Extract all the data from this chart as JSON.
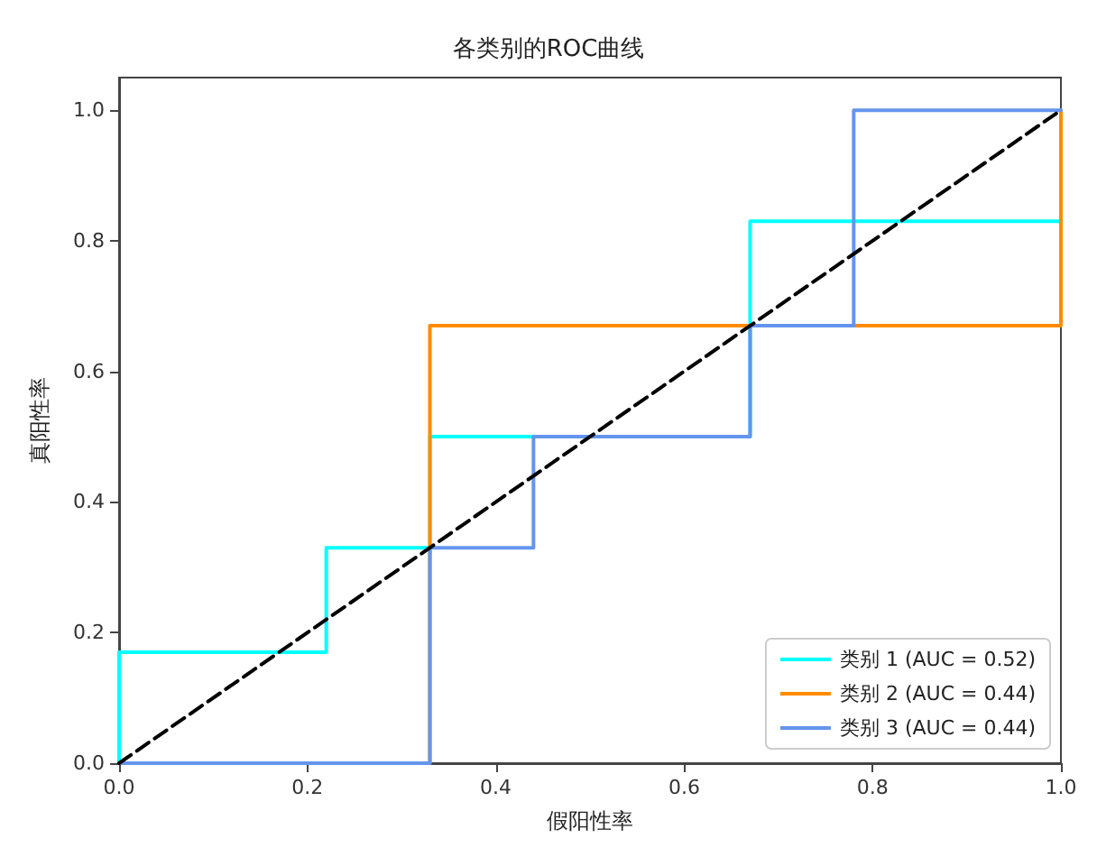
{
  "chart_data": {
    "type": "line",
    "title": "各类别的ROC曲线",
    "xlabel": "假阳性率",
    "ylabel": "真阳性率",
    "xlim": [
      0,
      1
    ],
    "ylim": [
      0,
      1.05
    ],
    "xticks": [
      {
        "value": 0,
        "label": "0.0"
      },
      0.2,
      0.4,
      0.6,
      0.8,
      {
        "value": 1,
        "label": "1.0"
      }
    ],
    "yticks": [
      {
        "value": 0,
        "label": "0.0"
      },
      0.2,
      0.4,
      0.6,
      0.8,
      {
        "value": 1,
        "label": "1.0"
      }
    ],
    "grid": false,
    "legend": "bottom right",
    "marker": "none",
    "line_style": "solid",
    "series": [
      {
        "name": "类别 1 (AUC = 0.52)",
        "color": "#00ffff",
        "x": [
          0,
          0,
          0.22,
          0.22,
          0.33,
          0.33,
          0.67,
          0.67,
          1,
          1
        ],
        "values": [
          0,
          0.17,
          0.17,
          0.33,
          0.33,
          0.5,
          0.5,
          0.83,
          0.83,
          1
        ]
      },
      {
        "name": "类别 2 (AUC = 0.44)",
        "color": "#ff8c00",
        "x": [
          0,
          0.33,
          0.33,
          1,
          1
        ],
        "values": [
          0,
          0,
          0.67,
          0.67,
          1
        ]
      },
      {
        "name": "类别 3 (AUC = 0.44)",
        "color": "#6495ed",
        "x": [
          0,
          0.33,
          0.33,
          0.44,
          0.44,
          0.67,
          0.67,
          0.78,
          0.78,
          1
        ],
        "values": [
          0,
          0,
          0.33,
          0.33,
          0.5,
          0.5,
          0.67,
          0.67,
          1,
          1
        ]
      },
      {
        "color": "#000000",
        "line_style": "dashed",
        "x": [
          0,
          1
        ],
        "values": [
          0,
          1
        ]
      }
    ]
  }
}
